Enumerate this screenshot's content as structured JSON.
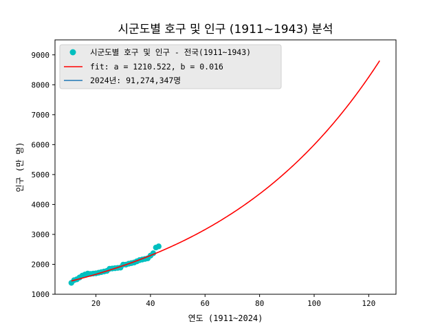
{
  "chart_data": {
    "type": "scatter",
    "title": "시군도별 호구 및 인구 (1911~1943) 분석",
    "xlabel": "연도 (1911~2024)",
    "ylabel": "인구 (만 명)",
    "xlim": [
      5,
      130
    ],
    "ylim": [
      1000,
      9500
    ],
    "x_ticks": [
      "20",
      "40",
      "60",
      "80",
      "100",
      "120"
    ],
    "y_ticks": [
      "1000",
      "2000",
      "3000",
      "4000",
      "5000",
      "6000",
      "7000",
      "8000",
      "9000"
    ],
    "grid": false,
    "legend_position": "top-left",
    "series": [
      {
        "name": "시군도별 호구 및 인구 - 전국(1911~1943)",
        "kind": "scatter",
        "color": "#00bfbf",
        "x": [
          11,
          12,
          13,
          14,
          15,
          16,
          17,
          18,
          19,
          20,
          21,
          22,
          23,
          24,
          25,
          26,
          27,
          28,
          29,
          30,
          31,
          32,
          33,
          34,
          35,
          36,
          37,
          38,
          39,
          40,
          41,
          42,
          43
        ],
        "y": [
          1380,
          1470,
          1500,
          1560,
          1620,
          1660,
          1690,
          1680,
          1690,
          1700,
          1720,
          1740,
          1760,
          1780,
          1850,
          1860,
          1870,
          1880,
          1890,
          1990,
          1990,
          2020,
          2040,
          2060,
          2100,
          2140,
          2160,
          2180,
          2200,
          2290,
          2370,
          2560,
          2600
        ]
      },
      {
        "name": "fit: a = 1210.522, b = 0.016",
        "kind": "line",
        "color": "#ff0000",
        "a": 1210.522,
        "b": 0.016,
        "x_start": 11,
        "x_end": 124
      },
      {
        "name": "2024년: 91,274,347명",
        "kind": "line",
        "color": "#1f77b4"
      }
    ]
  }
}
